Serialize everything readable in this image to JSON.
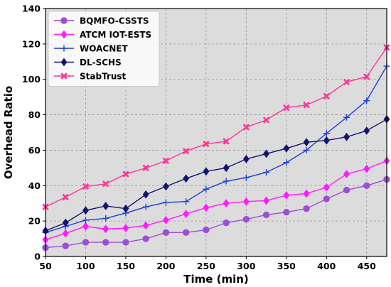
{
  "chart_data": {
    "type": "line",
    "xlabel": "Time (min)",
    "ylabel": "Overhead Ratio",
    "xlim": [
      50,
      475
    ],
    "ylim": [
      0,
      140
    ],
    "xticks": [
      50,
      100,
      150,
      200,
      250,
      300,
      350,
      400,
      450
    ],
    "yticks": [
      0,
      20,
      40,
      60,
      80,
      100,
      120,
      140
    ],
    "grid": true,
    "background": "#dcdcdc",
    "legend_position": "top-left",
    "x": [
      50,
      75,
      100,
      125,
      150,
      175,
      200,
      225,
      250,
      275,
      300,
      325,
      350,
      375,
      400,
      425,
      450,
      475
    ],
    "series": [
      {
        "name": "BQMFO-CSSTS",
        "color": "#9b4fd6",
        "marker": "circle",
        "values": [
          5,
          6,
          8,
          8,
          8,
          10,
          13.5,
          13.5,
          15,
          19,
          21,
          23.5,
          25,
          27,
          32.5,
          37.5,
          40,
          43.5
        ]
      },
      {
        "name": "ATCM IOT-ESTS",
        "color": "#ff1aff",
        "marker": "diamond",
        "values": [
          9.5,
          13,
          17,
          15.5,
          16,
          17.5,
          20.5,
          24,
          27.5,
          30,
          31,
          31.5,
          34.5,
          35.5,
          39,
          46.5,
          49.5,
          54
        ]
      },
      {
        "name": "WOACNET",
        "color": "#1f3fd6",
        "marker": "plus",
        "values": [
          13.5,
          17,
          20.5,
          21.5,
          24.5,
          28,
          30.5,
          31,
          38,
          42.5,
          44.5,
          47.5,
          53,
          60,
          69.5,
          78.5,
          88,
          107.5
        ]
      },
      {
        "name": "DL-SCHS",
        "color": "#14146e",
        "marker": "diamond",
        "values": [
          14.5,
          19,
          26,
          28.5,
          27,
          35,
          39.5,
          44,
          48,
          50,
          55,
          58,
          61,
          64.5,
          65.5,
          67.5,
          71,
          77.5
        ]
      },
      {
        "name": "StabTrust",
        "color": "#ff3399",
        "marker": "x",
        "values": [
          28,
          33.5,
          39.5,
          41,
          46.5,
          50,
          54,
          59.5,
          63.5,
          65,
          73,
          77,
          84,
          85.5,
          90.5,
          98.5,
          101.5,
          118
        ]
      }
    ]
  }
}
